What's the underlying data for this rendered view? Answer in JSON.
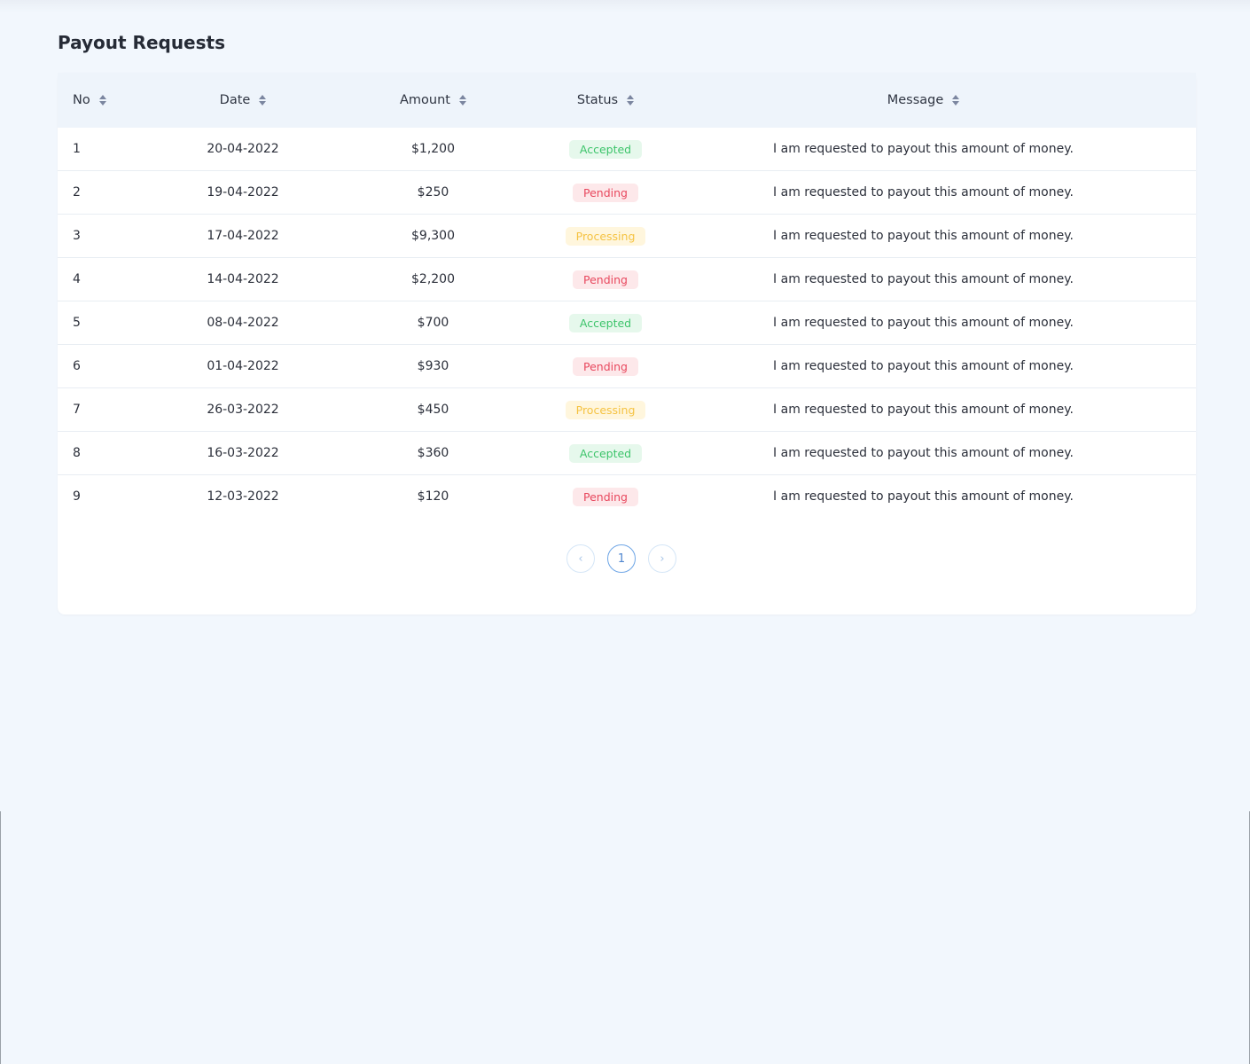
{
  "page": {
    "title": "Payout Requests"
  },
  "table": {
    "columns": [
      "No",
      "Date",
      "Amount",
      "Status",
      "Message"
    ],
    "rows": [
      {
        "no": "1",
        "date": "20-04-2022",
        "amount": "$1,200",
        "status": "Accepted",
        "message": "I am requested to payout this amount of money."
      },
      {
        "no": "2",
        "date": "19-04-2022",
        "amount": "$250",
        "status": "Pending",
        "message": "I am requested to payout this amount of money."
      },
      {
        "no": "3",
        "date": "17-04-2022",
        "amount": "$9,300",
        "status": "Processing",
        "message": "I am requested to payout this amount of money."
      },
      {
        "no": "4",
        "date": "14-04-2022",
        "amount": "$2,200",
        "status": "Pending",
        "message": "I am requested to payout this amount of money."
      },
      {
        "no": "5",
        "date": "08-04-2022",
        "amount": "$700",
        "status": "Accepted",
        "message": "I am requested to payout this amount of money."
      },
      {
        "no": "6",
        "date": "01-04-2022",
        "amount": "$930",
        "status": "Pending",
        "message": "I am requested to payout this amount of money."
      },
      {
        "no": "7",
        "date": "26-03-2022",
        "amount": "$450",
        "status": "Processing",
        "message": "I am requested to payout this amount of money."
      },
      {
        "no": "8",
        "date": "16-03-2022",
        "amount": "$360",
        "status": "Accepted",
        "message": "I am requested to payout this amount of money."
      },
      {
        "no": "9",
        "date": "12-03-2022",
        "amount": "$120",
        "status": "Pending",
        "message": "I am requested to payout this amount of money."
      }
    ]
  },
  "status_colors": {
    "Accepted": {
      "text": "#3cc46a",
      "bg": "#e6f8ec"
    },
    "Pending": {
      "text": "#e8485e",
      "bg": "#fde8ea"
    },
    "Processing": {
      "text": "#f5c343",
      "bg": "#fff6dd"
    }
  },
  "pagination": {
    "prev_icon": "chevron-left-icon",
    "current_page": "1",
    "next_icon": "chevron-right-icon",
    "prev_glyph": "‹",
    "next_glyph": "›"
  }
}
